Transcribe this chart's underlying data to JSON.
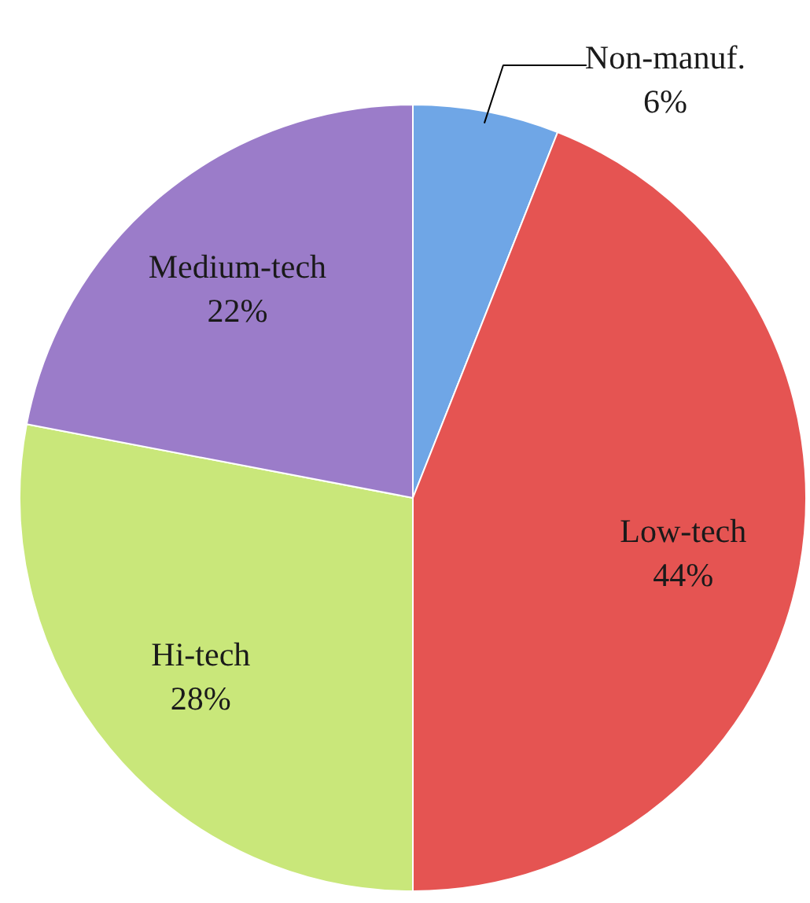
{
  "chart_data": {
    "type": "pie",
    "categories": [
      "Non-manuf.",
      "Low-tech",
      "Hi-tech",
      "Medium-tech"
    ],
    "values": [
      6,
      44,
      28,
      22
    ],
    "colors": [
      "#6fa6e6",
      "#e55452",
      "#c9e77a",
      "#9b7cc9"
    ],
    "value_labels": [
      "6%",
      "44%",
      "28%",
      "22%"
    ]
  }
}
